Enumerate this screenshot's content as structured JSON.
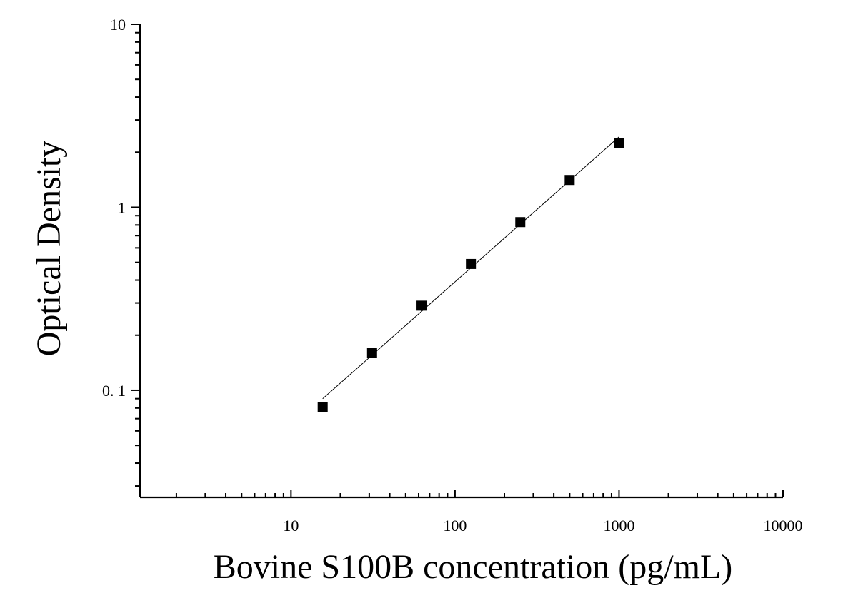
{
  "chart_data": {
    "type": "scatter",
    "title": "",
    "xlabel": "Bovine S100B concentration (pg/mL)",
    "ylabel": "Optical Density",
    "xscale": "log",
    "yscale": "log",
    "xlim": [
      1.2,
      10000
    ],
    "ylim": [
      0.026,
      10
    ],
    "grid": false,
    "legend": "none",
    "x_ticks": [
      {
        "value": 10,
        "label": "10"
      },
      {
        "value": 100,
        "label": "100"
      },
      {
        "value": 1000,
        "label": "1000"
      },
      {
        "value": 10000,
        "label": "10000"
      }
    ],
    "y_ticks": [
      {
        "value": 0.1,
        "label": "0. 1"
      },
      {
        "value": 1,
        "label": "1"
      },
      {
        "value": 10,
        "label": "10"
      }
    ],
    "series": [
      {
        "marker": "square",
        "color": "#000000",
        "fit_line": true,
        "points": [
          {
            "x": 15.6,
            "y": 0.081
          },
          {
            "x": 31.2,
            "y": 0.16
          },
          {
            "x": 62.5,
            "y": 0.29
          },
          {
            "x": 125,
            "y": 0.49
          },
          {
            "x": 250,
            "y": 0.83
          },
          {
            "x": 500,
            "y": 1.41
          },
          {
            "x": 1000,
            "y": 2.25
          }
        ]
      }
    ]
  }
}
